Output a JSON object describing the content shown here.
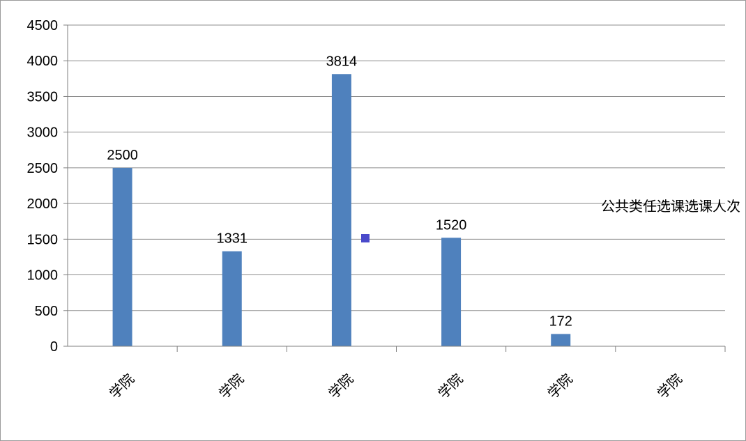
{
  "chart_data": {
    "type": "bar",
    "categories": [
      "",
      "",
      "",
      "",
      "",
      ""
    ],
    "category_tail_text": "学院",
    "series": [
      {
        "name": "公共类任选课选课人次",
        "values": [
          2500,
          1331,
          3814,
          1520,
          172,
          0
        ]
      }
    ],
    "data_labels": [
      "2500",
      "1331",
      "3814",
      "1520",
      "172",
      ""
    ],
    "yticks": [
      0,
      500,
      1000,
      1500,
      2000,
      2500,
      3000,
      3500,
      4000,
      4500
    ],
    "ylim": [
      0,
      4500
    ],
    "grid": true,
    "legend_position": "right",
    "bar_color": "#4f81bd",
    "legend_color": "#4a4acb",
    "title": "",
    "xlabel": "",
    "ylabel": ""
  }
}
